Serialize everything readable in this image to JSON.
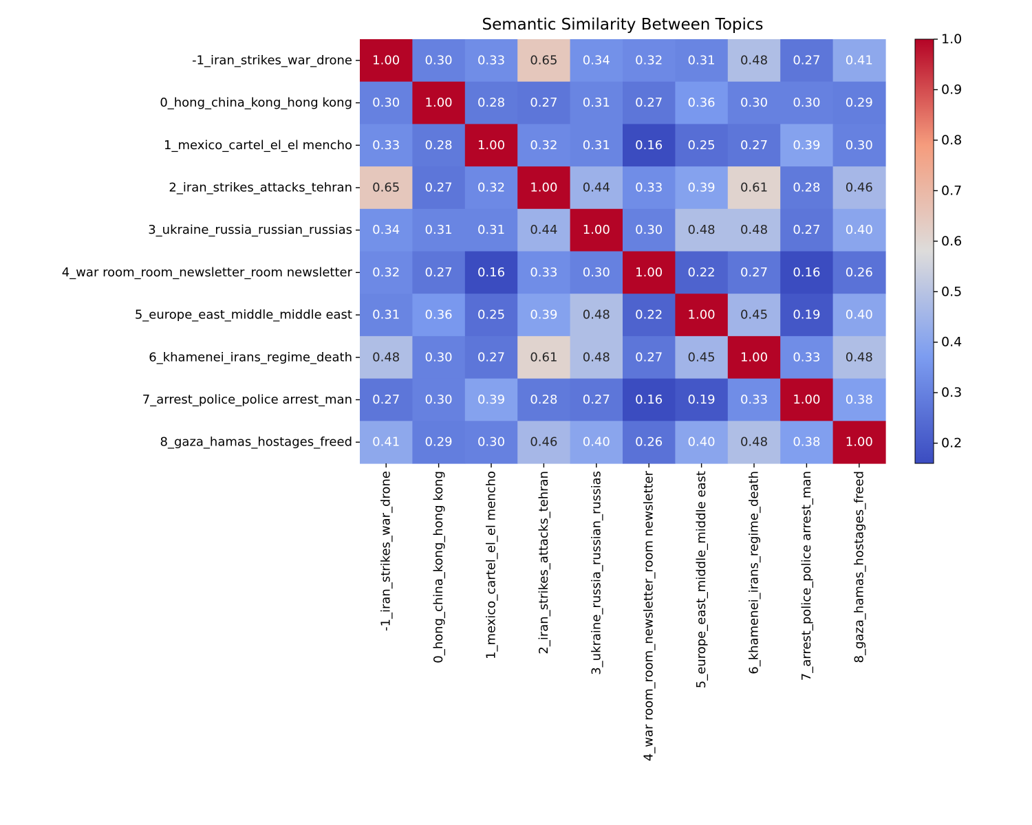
{
  "chart_data": {
    "type": "heatmap",
    "title": "Semantic Similarity Between Topics",
    "labels": [
      "-1_iran_strikes_war_drone",
      "0_hong_china_kong_hong kong",
      "1_mexico_cartel_el_el mencho",
      "2_iran_strikes_attacks_tehran",
      "3_ukraine_russia_russian_russias",
      "4_war room_room_newsletter_room newsletter",
      "5_europe_east_middle_middle east",
      "6_khamenei_irans_regime_death",
      "7_arrest_police_police arrest_man",
      "8_gaza_hamas_hostages_freed"
    ],
    "matrix": [
      [
        1.0,
        0.3,
        0.33,
        0.65,
        0.34,
        0.32,
        0.31,
        0.48,
        0.27,
        0.41
      ],
      [
        0.3,
        1.0,
        0.28,
        0.27,
        0.31,
        0.27,
        0.36,
        0.3,
        0.3,
        0.29
      ],
      [
        0.33,
        0.28,
        1.0,
        0.32,
        0.31,
        0.16,
        0.25,
        0.27,
        0.39,
        0.3
      ],
      [
        0.65,
        0.27,
        0.32,
        1.0,
        0.44,
        0.33,
        0.39,
        0.61,
        0.28,
        0.46
      ],
      [
        0.34,
        0.31,
        0.31,
        0.44,
        1.0,
        0.3,
        0.48,
        0.48,
        0.27,
        0.4
      ],
      [
        0.32,
        0.27,
        0.16,
        0.33,
        0.3,
        1.0,
        0.22,
        0.27,
        0.16,
        0.26
      ],
      [
        0.31,
        0.36,
        0.25,
        0.39,
        0.48,
        0.22,
        1.0,
        0.45,
        0.19,
        0.4
      ],
      [
        0.48,
        0.3,
        0.27,
        0.61,
        0.48,
        0.27,
        0.45,
        1.0,
        0.33,
        0.48
      ],
      [
        0.27,
        0.3,
        0.39,
        0.28,
        0.27,
        0.16,
        0.19,
        0.33,
        1.0,
        0.38
      ],
      [
        0.41,
        0.29,
        0.3,
        0.46,
        0.4,
        0.26,
        0.4,
        0.48,
        0.38,
        1.0
      ]
    ],
    "vmin": 0.16,
    "vmax": 1.0,
    "annotation_format": ".2f",
    "x_labels_rotation": 90,
    "grid": false,
    "legend": "none",
    "colormap": "coolwarm",
    "colormap_anchors": [
      {
        "t": 0.0,
        "color": "#3b4cc0"
      },
      {
        "t": 0.25,
        "color": "#7c9cf0"
      },
      {
        "t": 0.5,
        "color": "#dddcdb"
      },
      {
        "t": 0.75,
        "color": "#f59c7d"
      },
      {
        "t": 1.0,
        "color": "#b40426"
      }
    ],
    "colors": {
      "annot_dark": "#262626",
      "annot_light": "#ffffff",
      "axis_text": "#000000",
      "background": "#ffffff"
    },
    "colorbar": {
      "position": "right",
      "ticks": [
        0.2,
        0.3,
        0.4,
        0.5,
        0.6,
        0.7,
        0.8,
        0.9,
        1.0
      ],
      "tick_labels": [
        "0.2",
        "0.3",
        "0.4",
        "0.5",
        "0.6",
        "0.7",
        "0.8",
        "0.9",
        "1.0"
      ]
    }
  }
}
